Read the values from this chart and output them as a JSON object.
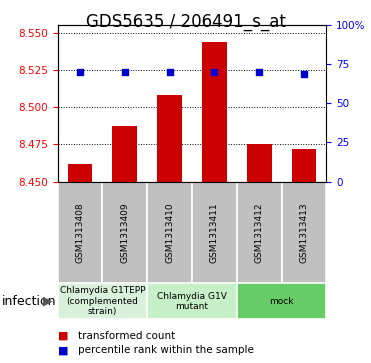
{
  "title": "GDS5635 / 206491_s_at",
  "samples": [
    "GSM1313408",
    "GSM1313409",
    "GSM1313410",
    "GSM1313411",
    "GSM1313412",
    "GSM1313413"
  ],
  "bar_values": [
    8.462,
    8.487,
    8.508,
    8.544,
    8.475,
    8.472
  ],
  "bar_base": 8.45,
  "percentile_values": [
    70,
    70,
    70,
    70,
    70,
    69
  ],
  "ylim_left": [
    8.45,
    8.555
  ],
  "ylim_right": [
    0,
    100
  ],
  "yticks_left": [
    8.45,
    8.475,
    8.5,
    8.525,
    8.55
  ],
  "yticks_right": [
    0,
    25,
    50,
    75,
    100
  ],
  "bar_color": "#cc0000",
  "dot_color": "#0000cc",
  "bar_width": 0.55,
  "groups": [
    {
      "label": "Chlamydia G1TEPP\n(complemented\nstrain)",
      "start": 0,
      "end": 1,
      "color": "#d9f0da"
    },
    {
      "label": "Chlamydia G1V\nmutant",
      "start": 2,
      "end": 3,
      "color": "#c8f0c8"
    },
    {
      "label": "mock",
      "start": 4,
      "end": 5,
      "color": "#66cc66"
    }
  ],
  "sample_box_color": "#c0c0c0",
  "factor_label": "infection",
  "legend_bar_label": "transformed count",
  "legend_dot_label": "percentile rank within the sample",
  "title_fontsize": 12,
  "tick_fontsize": 7.5,
  "sample_fontsize": 6.5,
  "group_fontsize": 6.5,
  "legend_fontsize": 7.5
}
